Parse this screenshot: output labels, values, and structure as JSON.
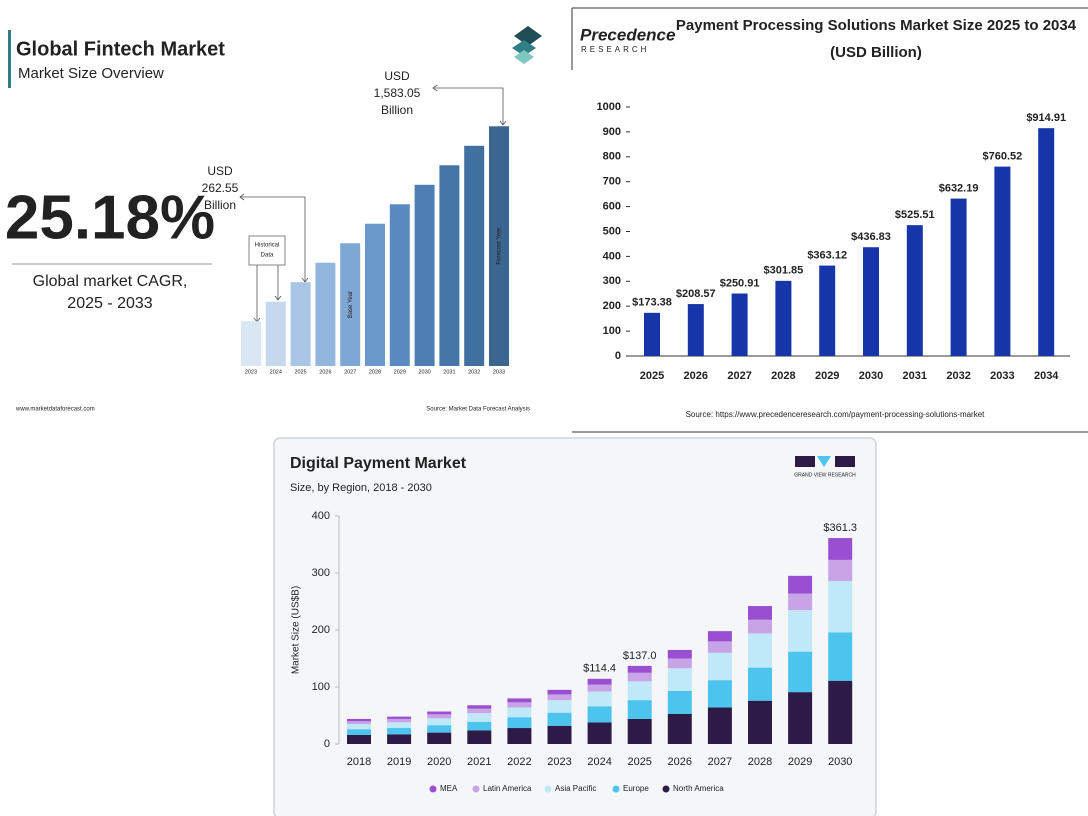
{
  "chart_data": [
    {
      "type": "bar",
      "title": "Global Fintech Market",
      "subtitle": "Market Size Overview",
      "headline": "25.18%",
      "headline_caption": [
        "Global market CAGR,",
        "2025 - 2033"
      ],
      "categories": [
        "2023",
        "2024",
        "2025",
        "2026",
        "2027",
        "2028",
        "2029",
        "2030",
        "2031",
        "2032",
        "2033"
      ],
      "values": [
        167.6,
        209.7,
        262.55,
        328.7,
        411.4,
        515.0,
        644.7,
        807.0,
        1010.2,
        1264.6,
        1583.05
      ],
      "colors": [
        "#d9e6f3",
        "#c5d8ee",
        "#a9c5e6",
        "#93b6de",
        "#7fa7d5",
        "#6b98cb",
        "#5a8ac0",
        "#4e7fb4",
        "#4676a8",
        "#40709f",
        "#3b6690"
      ],
      "log": true,
      "ylim": [
        100,
        2000
      ],
      "annotations": [
        {
          "category": "2025",
          "lines": [
            "USD",
            "262.55",
            "Billion"
          ]
        },
        {
          "category": "2033",
          "lines": [
            "USD",
            "1,583.05",
            "Billion"
          ]
        }
      ],
      "bar_labels": [
        {
          "category": "2027",
          "text": "Base Year"
        },
        {
          "category": "2033",
          "text": "Forecast Year"
        }
      ],
      "callout": [
        "Historical",
        "Data"
      ],
      "footer": "www.marketdataforecast.com",
      "source": "Source: Market Data Forecast Analysis"
    },
    {
      "type": "bar",
      "title": [
        "Payment Processing Solutions Market Size 2025 to 2034",
        "(USD Billion)"
      ],
      "logo": [
        "Precedence",
        "RESEARCH"
      ],
      "categories": [
        "2025",
        "2026",
        "2027",
        "2028",
        "2029",
        "2030",
        "2031",
        "2032",
        "2033",
        "2034"
      ],
      "values": [
        173.38,
        208.57,
        250.91,
        301.85,
        363.12,
        436.83,
        525.51,
        632.19,
        760.52,
        914.91
      ],
      "value_labels": [
        "$173.38",
        "$208.57",
        "$250.91",
        "$301.85",
        "$363.12",
        "$436.83",
        "$525.51",
        "$632.19",
        "$760.52",
        "$914.91"
      ],
      "color": "#1535a8",
      "ylim": [
        0,
        1000
      ],
      "yticks": [
        0,
        100,
        200,
        300,
        400,
        500,
        600,
        700,
        800,
        900,
        1000
      ],
      "source": "Source: https://www.precedenceresearch.com/payment-processing-solutions-market"
    },
    {
      "type": "stacked_bar",
      "title": "Digital Payment Market",
      "subtitle": "Size, by Region, 2018 - 2030",
      "logo": "GRAND VIEW RESEARCH",
      "ylabel": "Market Size (US$B)",
      "categories": [
        "2018",
        "2019",
        "2020",
        "2021",
        "2022",
        "2023",
        "2024",
        "2025",
        "2026",
        "2027",
        "2028",
        "2029",
        "2030"
      ],
      "series": [
        {
          "name": "North America",
          "color": "#2e1a47",
          "values": [
            16,
            17,
            20,
            24,
            28,
            32,
            38,
            44,
            53,
            64,
            76,
            91,
            111
          ]
        },
        {
          "name": "Europe",
          "color": "#4cc4ee",
          "values": [
            10,
            11,
            13,
            15,
            19,
            23,
            28,
            33,
            40,
            48,
            58,
            71,
            85
          ]
        },
        {
          "name": "Asia Pacific",
          "color": "#bfe8f8",
          "values": [
            9,
            10,
            12,
            15,
            17,
            22,
            26,
            33,
            40,
            48,
            60,
            73,
            90
          ]
        },
        {
          "name": "Latin America",
          "color": "#c8a3e6",
          "values": [
            5,
            6,
            7,
            8,
            9,
            10,
            12,
            15,
            17,
            20,
            24,
            29,
            37
          ]
        },
        {
          "name": "MEA",
          "color": "#9a4fd2",
          "values": [
            4,
            4,
            5,
            6,
            7,
            8,
            10.4,
            12,
            15,
            18,
            24,
            31,
            38.3
          ]
        }
      ],
      "total_labels": [
        {
          "category": "2024",
          "value": 114.4,
          "label": "$114.4"
        },
        {
          "category": "2025",
          "value": 137.0,
          "label": "$137.0"
        },
        {
          "category": "2030",
          "value": 361.3,
          "label": "$361.3"
        }
      ],
      "ylim": [
        0,
        400
      ],
      "yticks": [
        0,
        100,
        200,
        300,
        400
      ]
    }
  ]
}
